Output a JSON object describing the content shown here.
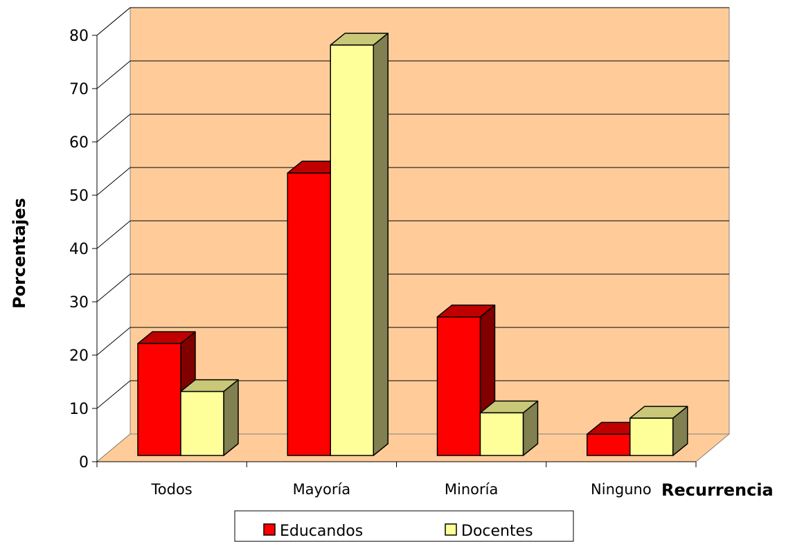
{
  "chart_data": {
    "type": "bar",
    "categories": [
      "Todos",
      "Mayoría",
      "Minoría",
      "Ninguno"
    ],
    "series": [
      {
        "name": "Educandos",
        "values": [
          21,
          53,
          26,
          4
        ],
        "color": "#ff0000",
        "top_color": "#c00000",
        "side_color": "#800000"
      },
      {
        "name": "Docentes",
        "values": [
          12,
          77,
          8,
          7
        ],
        "color": "#ffff99",
        "top_color": "#c8c878",
        "side_color": "#808050"
      }
    ],
    "title": "",
    "xlabel": "Recurrencia",
    "ylabel": "Porcentajes",
    "ylim": [
      0,
      80
    ],
    "yticks": [
      0,
      10,
      20,
      30,
      40,
      50,
      60,
      70,
      80
    ],
    "grid": true,
    "legend_position": "bottom",
    "wall_color": "#ffcc99",
    "floor_color": "#ffcc99"
  }
}
